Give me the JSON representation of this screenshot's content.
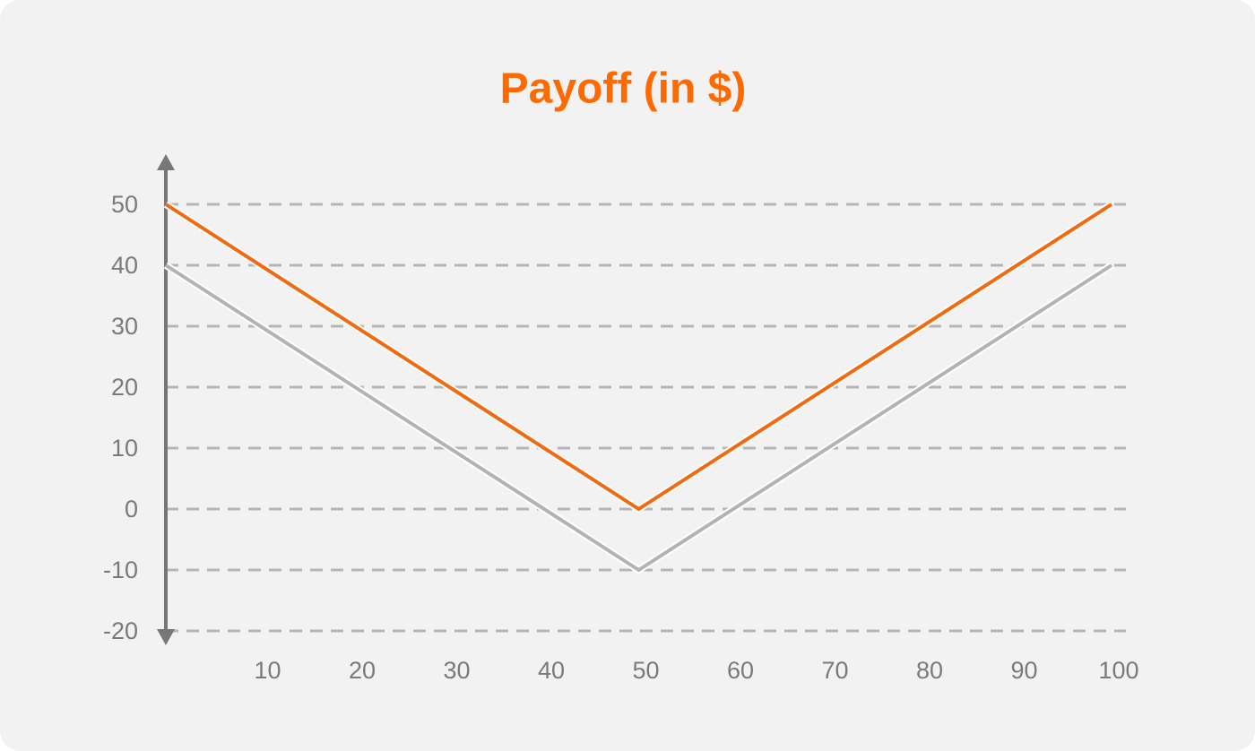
{
  "chart_data": {
    "type": "line",
    "title": "Payoff (in $)",
    "x": [
      0,
      50,
      100
    ],
    "series": [
      {
        "color": "#f26a10",
        "values": [
          50,
          0,
          50
        ]
      },
      {
        "color": "#b3b3b3",
        "values": [
          40,
          -10,
          40
        ]
      }
    ],
    "xlim": [
      0,
      100
    ],
    "xticks": [
      10,
      20,
      30,
      40,
      50,
      60,
      70,
      80,
      90,
      100
    ],
    "ylim": [
      -20,
      50
    ],
    "yticks": [
      -20,
      -10,
      0,
      10,
      20,
      30,
      40,
      50
    ],
    "grid": true,
    "title_color": "#ff6a00"
  }
}
